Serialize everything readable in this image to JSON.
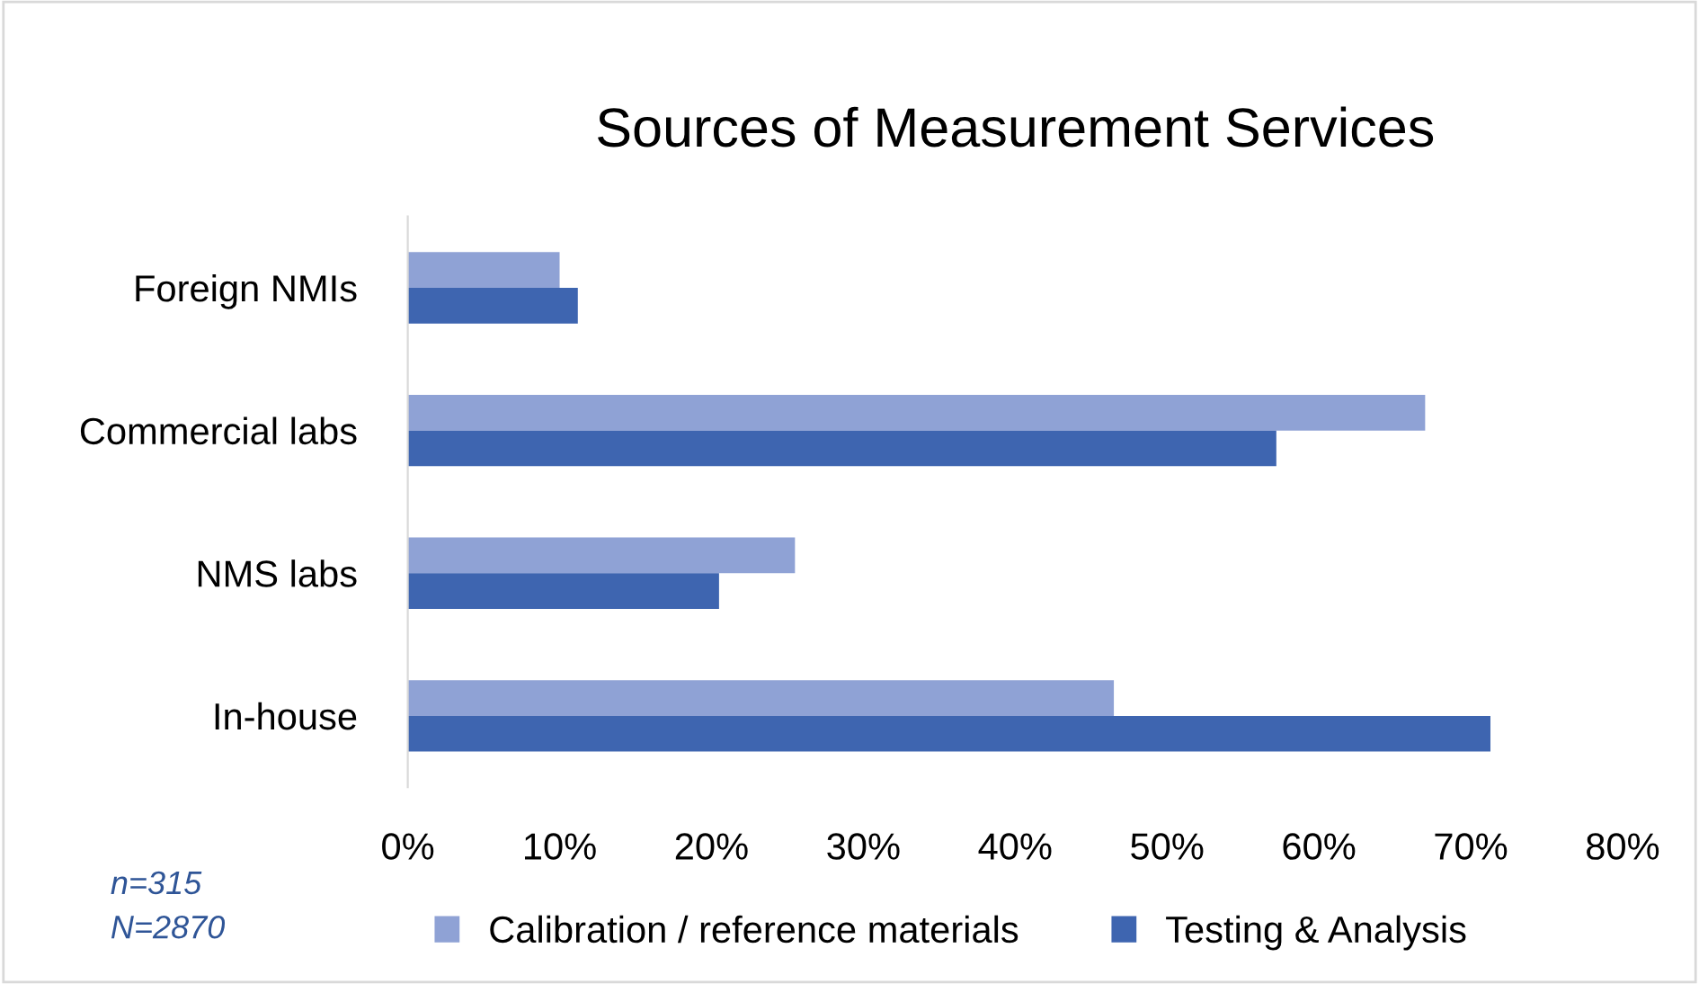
{
  "chart_data": {
    "type": "bar",
    "orientation": "horizontal",
    "title": "Sources of Measurement Services",
    "categories": [
      "Foreign NMIs",
      "Commercial labs",
      "NMS labs",
      "In-house"
    ],
    "series": [
      {
        "name": "Calibration / reference materials",
        "color": "#8fa2d5",
        "values": [
          10,
          67,
          25.5,
          46.5
        ]
      },
      {
        "name": "Testing & Analysis",
        "color": "#3e65b0",
        "values": [
          11.2,
          57.2,
          20.5,
          71.3
        ]
      }
    ],
    "xlim": [
      0,
      80
    ],
    "xticks": [
      {
        "value": 0,
        "label": "0%"
      },
      {
        "value": 10,
        "label": "10%"
      },
      {
        "value": 20,
        "label": "20%"
      },
      {
        "value": 30,
        "label": "30%"
      },
      {
        "value": 40,
        "label": "40%"
      },
      {
        "value": 50,
        "label": "50%"
      },
      {
        "value": 60,
        "label": "60%"
      },
      {
        "value": 70,
        "label": "70%"
      },
      {
        "value": 80,
        "label": "80%"
      }
    ],
    "grid": false,
    "legend": "bottom",
    "annotations": [
      "n=315",
      "N=2870"
    ]
  }
}
